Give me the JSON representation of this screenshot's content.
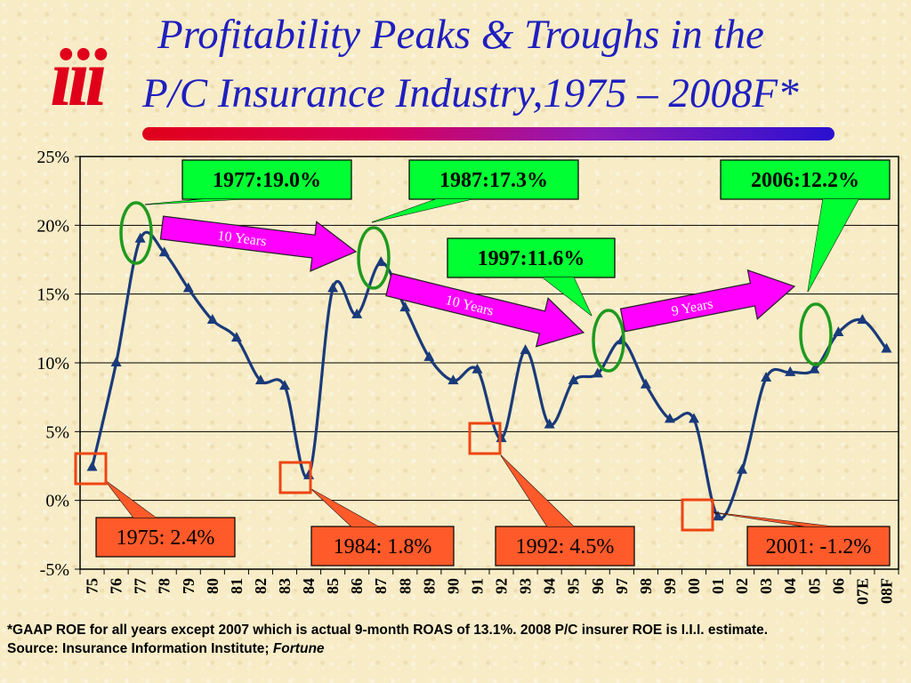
{
  "header": {
    "title_line1": "Profitability Peaks & Troughs in the",
    "title_line2": "P/C Insurance Industry,1975 – 2008F*",
    "logo_text": "iii",
    "accent_colors": {
      "title": "#1f1fbf",
      "line": "#1a3a7a",
      "logo": "#e0001a"
    }
  },
  "chart_data": {
    "type": "line",
    "ylabel": "",
    "xlabel": "",
    "ylim": [
      -5,
      25
    ],
    "ytick_values": [
      -5,
      0,
      5,
      10,
      15,
      20,
      25
    ],
    "ytick_labels": [
      "-5%",
      "0%",
      "5%",
      "10%",
      "15%",
      "20%",
      "25%"
    ],
    "grid": "horizontal",
    "categories": [
      "75",
      "76",
      "77",
      "78",
      "79",
      "80",
      "81",
      "82",
      "83",
      "84",
      "85",
      "86",
      "87",
      "88",
      "89",
      "90",
      "91",
      "92",
      "93",
      "94",
      "95",
      "96",
      "97",
      "98",
      "99",
      "00",
      "01",
      "02",
      "03",
      "04",
      "05",
      "06",
      "07E",
      "08F"
    ],
    "values": [
      2.4,
      10.0,
      19.0,
      18.0,
      15.4,
      13.1,
      11.8,
      8.7,
      8.3,
      1.8,
      15.4,
      13.5,
      17.3,
      14.0,
      10.4,
      8.7,
      9.5,
      4.5,
      10.9,
      5.5,
      8.7,
      9.2,
      11.6,
      8.4,
      5.9,
      5.9,
      -1.2,
      2.2,
      8.9,
      9.3,
      9.5,
      12.2,
      13.1,
      11.0
    ],
    "peaks": [
      {
        "label": "1977:19.0%",
        "index": 2
      },
      {
        "label": "1987:17.3%",
        "index": 12
      },
      {
        "label": "1997:11.6%",
        "index": 22
      },
      {
        "label": "2006:12.2%",
        "index": 31
      }
    ],
    "troughs": [
      {
        "label": "1975: 2.4%",
        "index": 0
      },
      {
        "label": "1984: 1.8%",
        "index": 9
      },
      {
        "label": "1992: 4.5%",
        "index": 17
      },
      {
        "label": "2001: -1.2%",
        "index": 26
      }
    ],
    "cycle_arrows": [
      {
        "label": "10 Years"
      },
      {
        "label": "10 Years"
      },
      {
        "label": "9 Years"
      }
    ]
  },
  "footnote": {
    "line1": "*GAAP ROE for all years except 2007 which is  actual 9-month ROAS of 13.1%.  2008 P/C insurer ROE is I.I.I. estimate.",
    "source_prefix": "Source:  Insurance Information Institute; ",
    "source_italic": "Fortune"
  }
}
